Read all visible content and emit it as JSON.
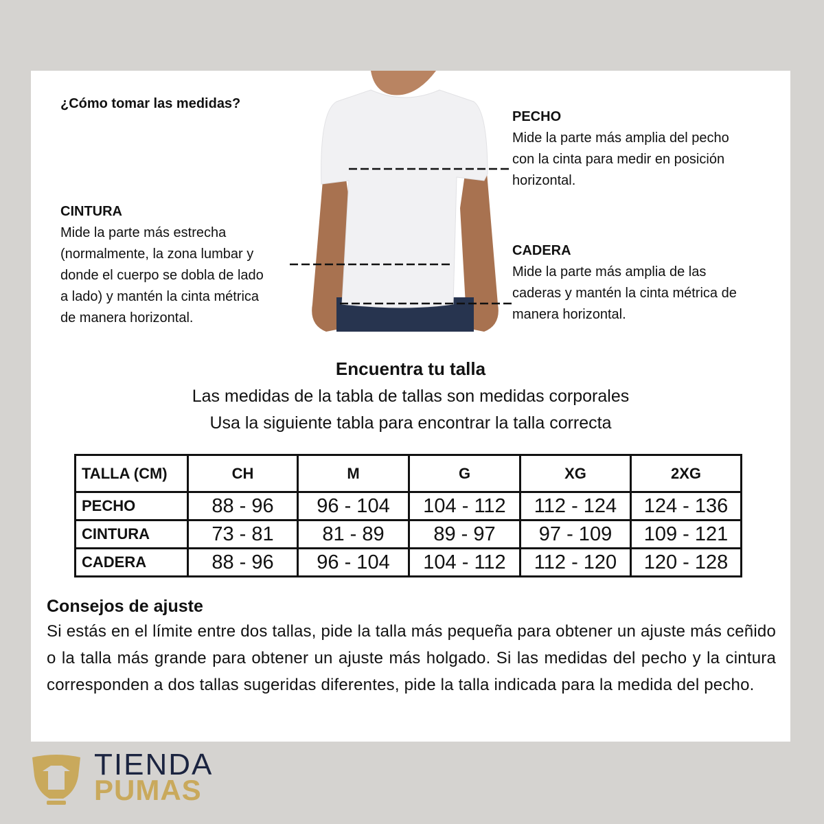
{
  "howto": {
    "title": "¿Cómo tomar las medidas?",
    "pecho": {
      "label": "PECHO",
      "lines": [
        "Mide la parte más amplia del pecho",
        "con la cinta para medir en posición",
        "horizontal."
      ]
    },
    "cintura": {
      "label": "CINTURA",
      "lines": [
        "Mide la parte más estrecha",
        "(normalmente, la zona lumbar y",
        "donde el cuerpo se dobla de lado",
        "a lado) y mantén la cinta métrica",
        "de manera horizontal."
      ]
    },
    "cadera": {
      "label": "CADERA",
      "lines": [
        "Mide la parte más amplia de las",
        "caderas y mantén la cinta métrica de",
        "manera horizontal."
      ]
    }
  },
  "find": {
    "title": "Encuentra tu talla",
    "line1": "Las medidas de la tabla de tallas son medidas corporales",
    "line2": "Usa la siguiente tabla para encontrar la talla correcta"
  },
  "table": {
    "headers": [
      "TALLA (CM)",
      "CH",
      "M",
      "G",
      "XG",
      "2XG"
    ],
    "rows": [
      [
        "PECHO",
        "88 - 96",
        "96 - 104",
        "104 - 112",
        "112 - 124",
        "124 - 136"
      ],
      [
        "CINTURA",
        "73 - 81",
        "81 - 89",
        "89 - 97",
        "97 - 109",
        "109 - 121"
      ],
      [
        "CADERA",
        "88 - 96",
        "96 - 104",
        "104 - 112",
        "112 - 120",
        "120 - 128"
      ]
    ]
  },
  "tips": {
    "title": "Consejos de ajuste",
    "text": "Si estás en el límite entre dos tallas, pide la talla más pequeña para obtener un ajuste más ceñido o la talla más grande para obtener un ajuste más holgado. Si las medidas del pecho y la cintura corresponden a dos tallas sugeridas diferentes, pide la talla indicada para la medida del pecho."
  },
  "logo": {
    "line1": "TIENDA",
    "line2": "PUMAS",
    "colors": {
      "navy": "#1b2440",
      "gold": "#c9a95c"
    }
  }
}
